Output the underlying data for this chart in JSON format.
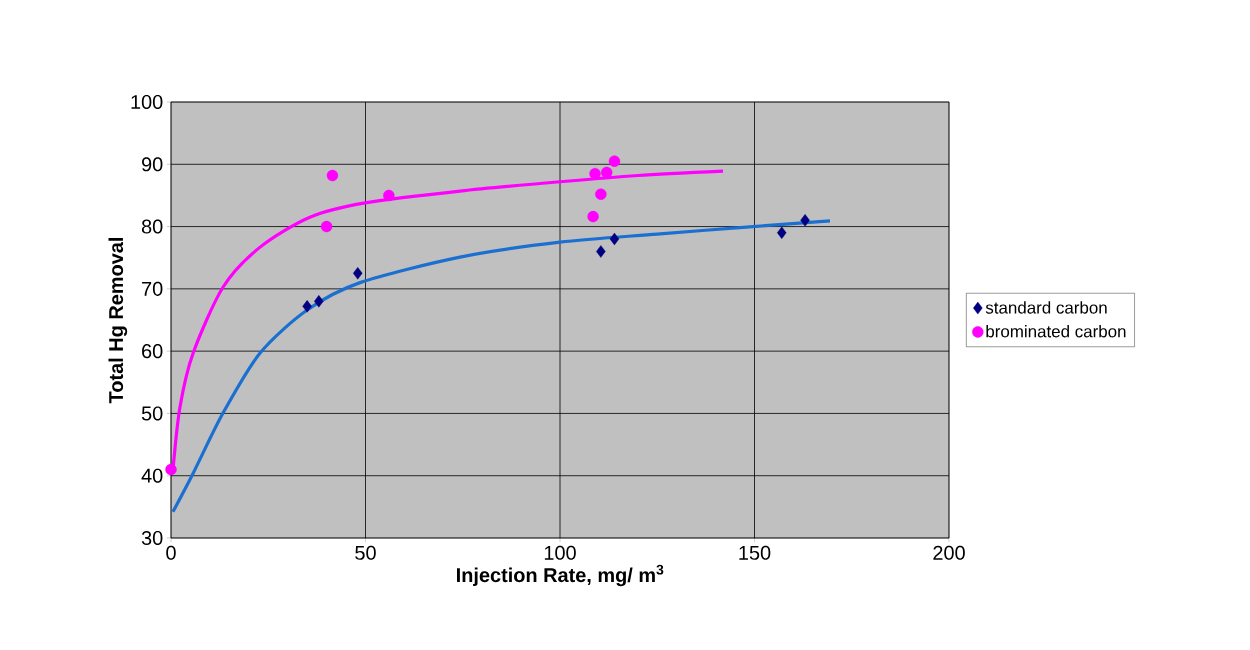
{
  "chart_data": {
    "type": "scatter",
    "xlabel": "Injection Rate, mg/ m$^{3}$",
    "ylabel": "Total Hg Removal",
    "xlim": [
      0,
      200
    ],
    "ylim": [
      30,
      100
    ],
    "xticks": [
      0,
      50,
      100,
      150,
      200
    ],
    "yticks": [
      30,
      40,
      50,
      60,
      70,
      80,
      90,
      100
    ],
    "grid": true,
    "legend": "right",
    "series": [
      {
        "name": "standard carbon",
        "marker": "diamond",
        "color": "#000080",
        "x": [
          35,
          38,
          48,
          110.5,
          114,
          157,
          163
        ],
        "values": [
          67.2,
          68,
          72.5,
          76,
          78,
          79,
          81
        ]
      },
      {
        "name": "brominated carbon",
        "marker": "circle",
        "color": "#ff00ff",
        "x": [
          0,
          40,
          41.5,
          56,
          108.5,
          109,
          110.5,
          112,
          114
        ],
        "values": [
          41,
          80,
          88.2,
          85,
          81.6,
          88.5,
          85.2,
          88.7,
          90.5
        ]
      },
      {
        "type": "line",
        "marker": "none",
        "line_style": "solid",
        "color": "#1a6fd0",
        "x": [
          0.5,
          5.7,
          13.4,
          22.9,
          35,
          48.6,
          74.3,
          100,
          125,
          149.6,
          169.4
        ],
        "values": [
          34.2,
          40.4,
          50.1,
          59.7,
          66.6,
          71,
          75.1,
          77.5,
          78.8,
          80,
          80.9
        ]
      },
      {
        "type": "line",
        "marker": "none",
        "line_style": "solid",
        "color": "#ff00ff",
        "x": [
          0.5,
          2.3,
          5.7,
          13.4,
          22.9,
          35.7,
          49.9,
          74.3,
          100,
          120,
          141.9
        ],
        "values": [
          40.9,
          51,
          59.7,
          70.3,
          76.7,
          81.5,
          83.8,
          85.7,
          87.2,
          88.2,
          88.9
        ]
      }
    ]
  }
}
